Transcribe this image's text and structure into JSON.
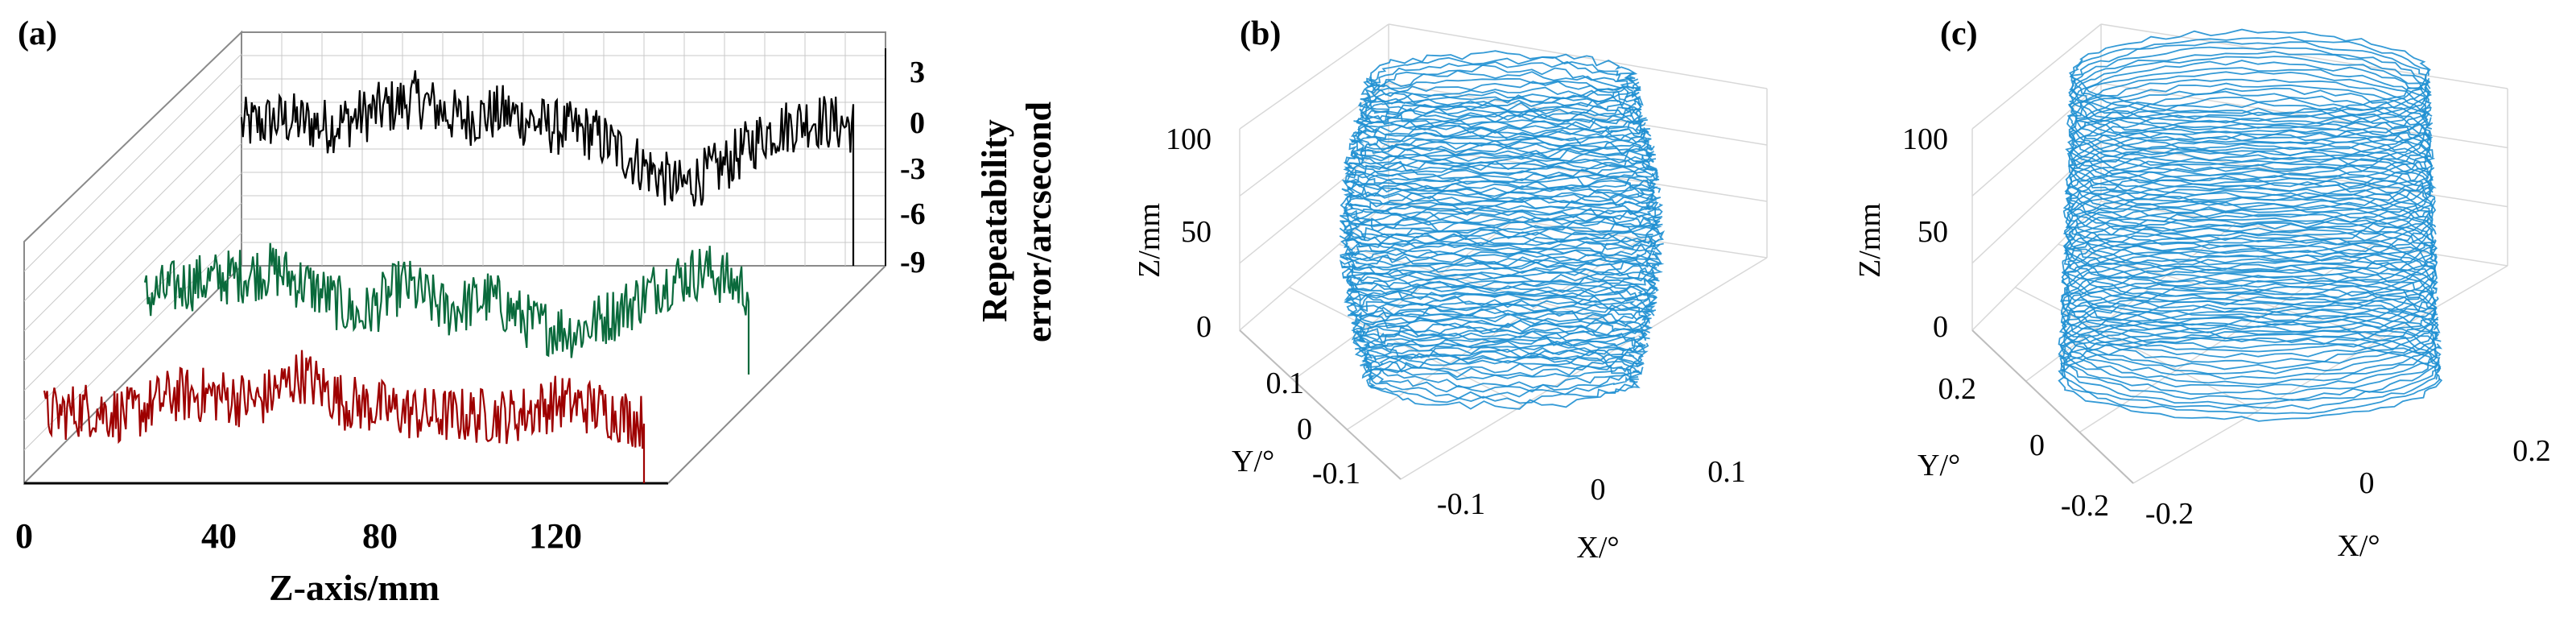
{
  "figure": {
    "panels": [
      {
        "label": "(a)",
        "type": "line",
        "title": "",
        "xlabel": "Z-axis/mm",
        "ylabel": "Repeatability error/arcsecond",
        "ylabel_lines": [
          "Repeatability",
          "error/arcsecond"
        ],
        "x_ticks": [
          "0",
          "40",
          "80",
          "120"
        ],
        "z_ticks": [
          "3",
          "0",
          "-3",
          "-6",
          "-9"
        ],
        "colors": {
          "black": "#000000",
          "green": "#0a6a3c",
          "red": "#9e0000"
        }
      },
      {
        "label": "(b)",
        "type": "3d-line",
        "title": "",
        "zlabel": "Z/mm",
        "ylabel": "Y/°",
        "xlabel": "X/°",
        "z_ticks": [
          "100",
          "50",
          "0"
        ],
        "y_ticks": [
          "0.1",
          "0",
          "-0.1"
        ],
        "x_ticks": [
          "-0.1",
          "0",
          "0.1"
        ],
        "color": "#1e8fd1"
      },
      {
        "label": "(c)",
        "type": "3d-line",
        "title": "",
        "zlabel": "Z/mm",
        "ylabel": "Y/°",
        "xlabel": "X/°",
        "z_ticks": [
          "100",
          "50",
          "0"
        ],
        "y_ticks": [
          "0.2",
          "0",
          "-0.2"
        ],
        "x_ticks": [
          "-0.2",
          "0",
          "0.2"
        ],
        "color": "#1e8fd1"
      }
    ]
  },
  "chart_data": [
    {
      "type": "line",
      "panel": "(a)",
      "xlabel": "Z-axis/mm",
      "ylabel": "Repeatability error/arcsecond",
      "xlim": [
        0,
        140
      ],
      "ylim": [
        -9,
        3
      ],
      "x_ticks": [
        0,
        40,
        80,
        120
      ],
      "y_ticks": [
        3,
        0,
        -3,
        -6,
        -9
      ],
      "series": [
        {
          "color": "#000000",
          "x": [
            0,
            10,
            20,
            30,
            40,
            50,
            60,
            70,
            80,
            90,
            100,
            110,
            120,
            130,
            140
          ],
          "values": [
            0.5,
            1.0,
            0.5,
            1.5,
            2.5,
            1.0,
            1.5,
            0.5,
            0.0,
            -2.0,
            -4.0,
            -2.5,
            0.0,
            1.0,
            0.5
          ]
        },
        {
          "color": "#0a6a3c",
          "x": [
            0,
            10,
            20,
            30,
            40,
            50,
            60,
            70,
            80,
            90,
            100,
            110,
            120,
            130,
            140
          ],
          "values": [
            -2.0,
            -1.0,
            -0.5,
            0.0,
            -1.5,
            -3.5,
            -1.0,
            -3.0,
            -2.0,
            -4.0,
            -4.5,
            -3.0,
            -1.0,
            0.0,
            -1.5
          ]
        },
        {
          "color": "#9e0000",
          "x": [
            0,
            10,
            20,
            30,
            40,
            50,
            60,
            70,
            80,
            90,
            100,
            110,
            120,
            130,
            140
          ],
          "values": [
            -3.0,
            -2.5,
            -3.0,
            -1.5,
            -1.5,
            -2.0,
            0.0,
            -2.0,
            -2.5,
            -3.0,
            -3.0,
            -3.0,
            -2.0,
            -2.5,
            -3.5
          ]
        }
      ]
    },
    {
      "type": "3d-line",
      "panel": "(b)",
      "xlabel": "X/°",
      "ylabel": "Y/°",
      "zlabel": "Z/mm",
      "xlim": [
        -0.15,
        0.15
      ],
      "ylim": [
        -0.1,
        0.1
      ],
      "zlim": [
        0,
        140
      ],
      "x_ticks": [
        -0.1,
        0,
        0.1
      ],
      "y_ticks": [
        -0.1,
        0,
        0.1
      ],
      "z_ticks": [
        0,
        50,
        100
      ],
      "profile_count": 60,
      "profile_z_range": [
        0,
        140
      ]
    },
    {
      "type": "3d-line",
      "panel": "(c)",
      "xlabel": "X/°",
      "ylabel": "Y/°",
      "zlabel": "Z/mm",
      "xlim": [
        -0.3,
        0.3
      ],
      "ylim": [
        -0.3,
        0.3
      ],
      "zlim": [
        0,
        140
      ],
      "x_ticks": [
        -0.2,
        0,
        0.2
      ],
      "y_ticks": [
        -0.2,
        0,
        0.2
      ],
      "z_ticks": [
        0,
        50,
        100
      ],
      "profile_count": 60,
      "profile_z_range": [
        0,
        140
      ]
    }
  ]
}
